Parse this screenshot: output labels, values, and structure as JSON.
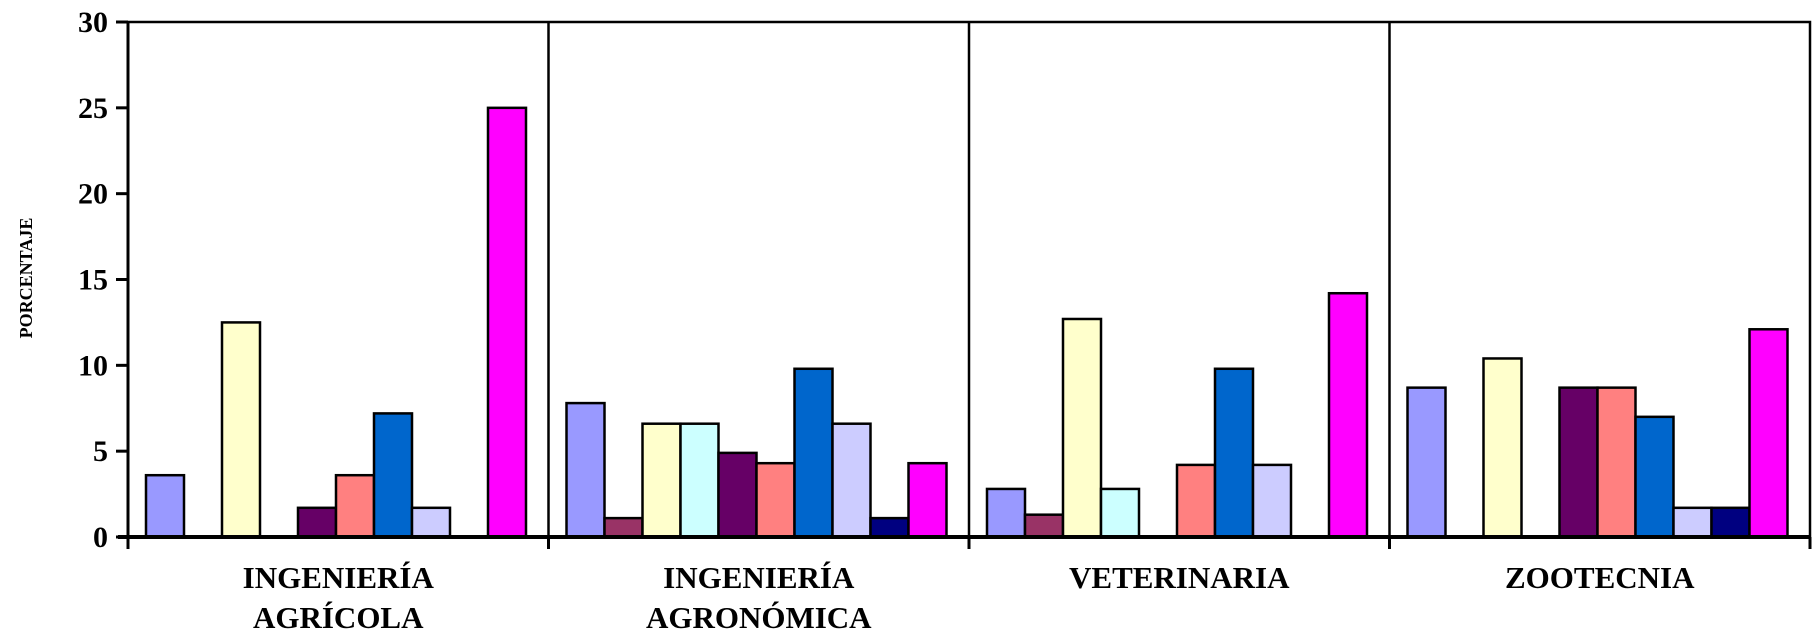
{
  "chart_data": {
    "type": "bar",
    "title": "",
    "xlabel": "",
    "ylabel": "PORCENTAJE",
    "ylim": [
      0,
      30
    ],
    "yticks": [
      0,
      5,
      10,
      15,
      20,
      25,
      30
    ],
    "grid": false,
    "legend": "none",
    "categories": [
      [
        "INGENIERÍA",
        "AGRÍCOLA"
      ],
      [
        "INGENIERÍA",
        "AGRONÓMICA"
      ],
      [
        "VETERINARIA"
      ],
      [
        "ZOOTECNIA"
      ]
    ],
    "series": [
      {
        "color": "#9999ff",
        "values": [
          3.6,
          7.8,
          2.8,
          8.7
        ]
      },
      {
        "color": "#993366",
        "values": [
          0,
          1.1,
          1.3,
          0
        ]
      },
      {
        "color": "#ffffcc",
        "values": [
          12.5,
          6.6,
          12.7,
          10.4
        ]
      },
      {
        "color": "#ccffff",
        "values": [
          0,
          6.6,
          2.8,
          0
        ]
      },
      {
        "color": "#660066",
        "values": [
          1.7,
          4.9,
          0,
          8.7
        ]
      },
      {
        "color": "#ff8080",
        "values": [
          3.6,
          4.3,
          4.2,
          8.7
        ]
      },
      {
        "color": "#0066cc",
        "values": [
          7.2,
          9.8,
          9.8,
          7.0
        ]
      },
      {
        "color": "#ccccff",
        "values": [
          1.7,
          6.6,
          4.2,
          1.7
        ]
      },
      {
        "color": "#000080",
        "values": [
          0,
          1.1,
          0,
          1.7
        ]
      },
      {
        "color": "#ff00ff",
        "values": [
          25.0,
          4.3,
          14.2,
          12.1
        ]
      }
    ]
  }
}
